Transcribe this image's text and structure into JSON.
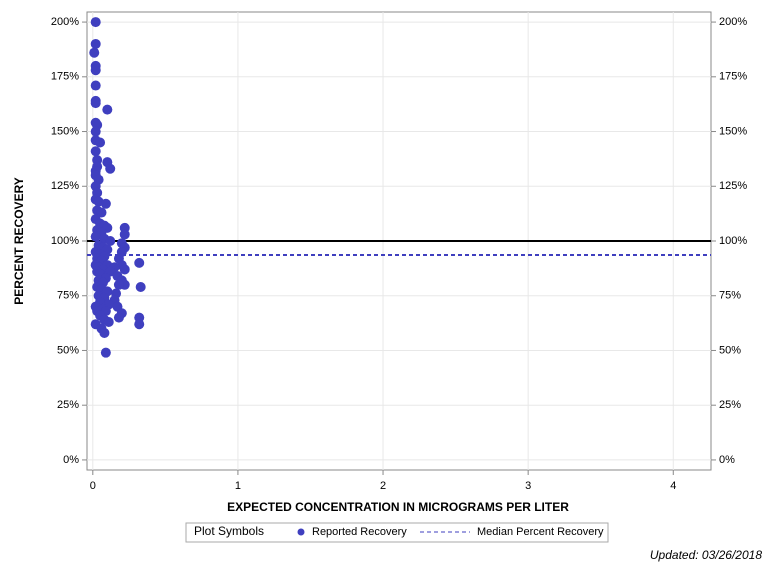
{
  "chart_data": {
    "type": "scatter",
    "x_label": "EXPECTED CONCENTRATION IN MICROGRAMS PER LITER",
    "y_label": "PERCENT RECOVERY",
    "xlim": [
      -0.04,
      4.26
    ],
    "xticks": [
      0,
      1,
      2,
      3,
      4
    ],
    "ylim": [
      -4.6,
      204.6
    ],
    "yticks": [
      {
        "value": 0,
        "label": "0%"
      },
      {
        "value": 25,
        "label": "25%"
      },
      {
        "value": 50,
        "label": "50%"
      },
      {
        "value": 75,
        "label": "75%"
      },
      {
        "value": 100,
        "label": "100%"
      },
      {
        "value": 125,
        "label": "125%"
      },
      {
        "value": 150,
        "label": "150%"
      },
      {
        "value": 175,
        "label": "175%"
      },
      {
        "value": 200,
        "label": "200%"
      }
    ],
    "grid": true,
    "reference_y": 100,
    "median": {
      "name": "Median Percent Recovery",
      "value": 93.6,
      "color": "#3f3fbf"
    },
    "legend_title": "Plot Symbols",
    "footer": "Updated: 03/26/2018",
    "series": [
      {
        "name": "Reported Recovery",
        "color": "#3f3fbf",
        "x": [
          0.02,
          0.02,
          0.01,
          0.02,
          0.02,
          0.02,
          0.02,
          0.02,
          0.1,
          0.02,
          0.03,
          0.02,
          0.02,
          0.05,
          0.02,
          0.03,
          0.1,
          0.03,
          0.12,
          0.02,
          0.02,
          0.04,
          0.02,
          0.03,
          0.02,
          0.04,
          0.09,
          0.03,
          0.06,
          0.02,
          0.05,
          0.08,
          0.1,
          0.22,
          0.03,
          0.22,
          0.06,
          0.02,
          0.08,
          0.12,
          0.2,
          0.04,
          0.07,
          0.22,
          0.1,
          0.02,
          0.2,
          0.05,
          0.08,
          0.03,
          0.18,
          0.06,
          0.32,
          0.02,
          0.1,
          0.2,
          0.04,
          0.15,
          0.07,
          0.22,
          0.03,
          0.12,
          0.05,
          0.17,
          0.09,
          0.2,
          0.04,
          0.07,
          0.22,
          0.18,
          0.33,
          0.03,
          0.06,
          0.1,
          0.16,
          0.04,
          0.08,
          0.15,
          0.05,
          0.11,
          0.02,
          0.17,
          0.07,
          0.03,
          0.09,
          0.2,
          0.05,
          0.18,
          0.32,
          0.08,
          0.11,
          0.02,
          0.32,
          0.06,
          0.08,
          0.09
        ],
        "values": [
          200,
          190,
          186,
          180,
          178,
          171,
          164,
          163,
          160,
          154,
          153,
          150,
          146,
          145,
          141,
          137,
          136,
          134,
          133,
          132,
          130,
          128,
          125,
          122,
          119,
          118,
          117,
          114,
          113,
          110,
          108,
          107,
          106,
          106,
          105,
          103,
          104,
          102,
          101,
          100,
          99,
          98,
          97,
          97,
          96,
          95,
          95,
          94,
          93,
          92,
          92,
          91,
          90,
          89,
          89,
          89,
          88,
          88,
          87,
          87,
          86,
          86,
          85,
          84,
          83,
          82,
          82,
          81,
          80,
          80,
          79,
          79,
          78,
          77,
          76,
          75,
          74,
          73,
          72,
          71,
          70,
          70,
          69,
          68,
          68,
          67,
          66,
          65,
          65,
          64,
          63,
          62,
          62,
          60,
          58,
          49
        ]
      }
    ]
  }
}
